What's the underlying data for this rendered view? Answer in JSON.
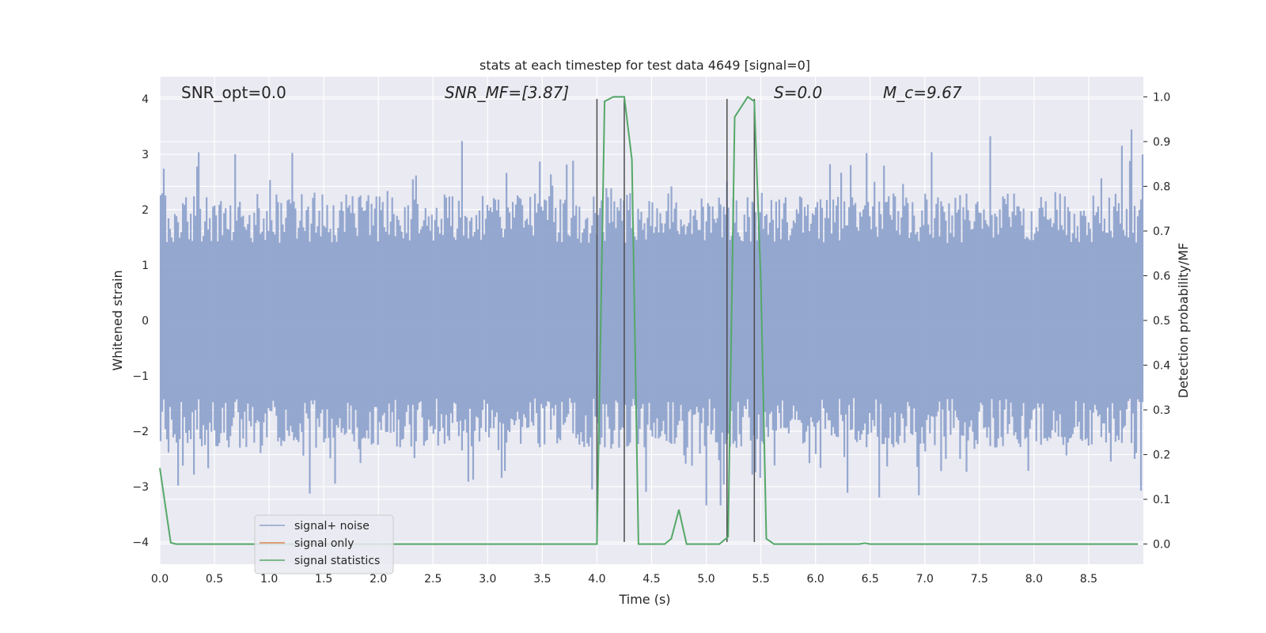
{
  "chart_data": {
    "type": "line",
    "title": "stats at each timestep for test data 4649 [signal=0]",
    "xlabel": "Time (s)",
    "ylabel": "Whitened strain",
    "y2label": "Detection probability/MF",
    "xlim": [
      0.0,
      9.0
    ],
    "ylim": [
      -4.4,
      4.4
    ],
    "y2lim": [
      -0.045,
      1.045
    ],
    "x_ticks": [
      "0.0",
      "0.5",
      "1.0",
      "1.5",
      "2.0",
      "2.5",
      "3.0",
      "3.5",
      "4.0",
      "4.5",
      "5.0",
      "5.5",
      "6.0",
      "6.5",
      "7.0",
      "7.5",
      "8.0",
      "8.5"
    ],
    "y_ticks": [
      "4",
      "3",
      "2",
      "1",
      "0",
      "−1",
      "−2",
      "−3",
      "−4"
    ],
    "y2_ticks": [
      "1.0",
      "0.9",
      "0.8",
      "0.7",
      "0.6",
      "0.5",
      "0.4",
      "0.3",
      "0.2",
      "0.1",
      "0.0"
    ],
    "grid": true,
    "legend_position": "lower-left",
    "annotations": {
      "snr_opt": "SNR_opt=0.0",
      "snr_mf": "SNR_MF=[3.87]",
      "s": "S=0.0",
      "mc": "M_c=9.67"
    },
    "series": [
      {
        "name": "signal+ noise",
        "color": "#8fa3cc",
        "axis": "left",
        "description": "whitened strain, dense noise filling roughly -2.5..2.5 with spikes to about +/-3.5"
      },
      {
        "name": "signal only",
        "color": "#dd8452",
        "axis": "left",
        "x": [],
        "y": []
      },
      {
        "name": "signal statistics",
        "color": "#55a868",
        "axis": "right",
        "x": [
          0.0,
          0.1,
          0.15,
          4.0,
          4.07,
          4.15,
          4.25,
          4.32,
          4.38,
          4.45,
          4.62,
          4.68,
          4.75,
          4.82,
          5.12,
          5.2,
          5.26,
          5.38,
          5.44,
          5.5,
          5.55,
          5.62,
          6.4,
          6.45,
          6.5,
          8.95
        ],
        "y": [
          0.17,
          0.003,
          0.0,
          0.0,
          0.99,
          1.0,
          1.0,
          0.86,
          0.0,
          0.0,
          0.0,
          0.012,
          0.077,
          0.0,
          0.0,
          0.016,
          0.955,
          1.0,
          0.99,
          0.585,
          0.012,
          0.0,
          0.0,
          0.002,
          0.0,
          0.0
        ]
      }
    ],
    "vlines": [
      4.0,
      4.25,
      5.19,
      5.44
    ],
    "vline_range": [
      -4.0,
      4.0
    ]
  }
}
